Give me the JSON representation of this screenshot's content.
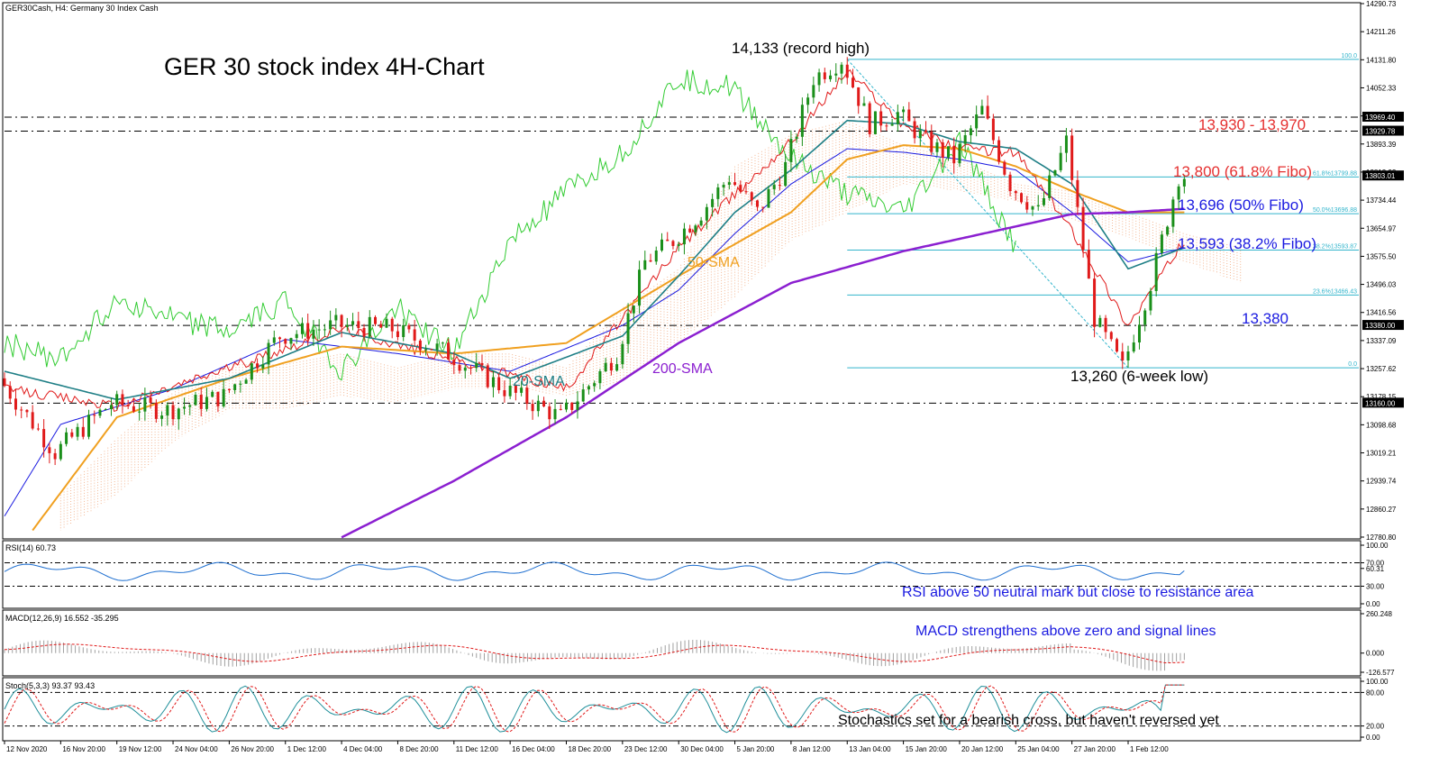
{
  "header": {
    "symbol_line": "GER30Cash, H4:  Germany 30 Index Cash",
    "title": "GER 30 stock index 4H-Chart"
  },
  "chart_data": {
    "type": "candlestick",
    "symbol": "GER30Cash",
    "timeframe": "H4",
    "price_axis": {
      "ticks": [
        "14290.73",
        "14211.26",
        "14131.80",
        "14052.33",
        "13972.86",
        "13893.39",
        "13813.93",
        "13734.44",
        "13654.97",
        "13575.50",
        "13496.03",
        "13416.56",
        "13337.09",
        "13257.62",
        "13178.15",
        "13098.68",
        "13019.21",
        "12939.74",
        "12860.27",
        "12780.80"
      ],
      "boxed": [
        "13969.40",
        "13929.78",
        "13803.01",
        "13380.00",
        "13160.00"
      ],
      "ylim": [
        12780.8,
        14290.73
      ]
    },
    "time_axis": [
      "12 Nov 2020",
      "16 Nov 20:00",
      "19 Nov 12:00",
      "24 Nov 04:00",
      "26 Nov 20:00",
      "1 Dec 12:00",
      "4 Dec 04:00",
      "8 Dec 20:00",
      "11 Dec 12:00",
      "16 Dec 04:00",
      "18 Dec 20:00",
      "23 Dec 12:00",
      "30 Dec 04:00",
      "5 Jan 20:00",
      "8 Jan 12:00",
      "13 Jan 04:00",
      "15 Jan 20:00",
      "20 Jan 12:00",
      "25 Jan 04:00",
      "27 Jan 20:00",
      "1 Feb 12:00"
    ],
    "price_path": [
      [
        0,
        13230
      ],
      [
        1,
        13020
      ],
      [
        2,
        13160
      ],
      [
        3,
        13140
      ],
      [
        4,
        13180
      ],
      [
        5,
        13350
      ],
      [
        6,
        13380
      ],
      [
        7,
        13370
      ],
      [
        8,
        13300
      ],
      [
        9,
        13200
      ],
      [
        10,
        13120
      ],
      [
        11,
        13300
      ],
      [
        11.5,
        13560
      ],
      [
        12,
        13620
      ],
      [
        12.5,
        13700
      ],
      [
        13,
        13800
      ],
      [
        13.5,
        13700
      ],
      [
        14,
        13830
      ],
      [
        14.5,
        14080
      ],
      [
        15,
        14133
      ],
      [
        15.5,
        13950
      ],
      [
        16,
        13980
      ],
      [
        16.5,
        13900
      ],
      [
        17,
        13850
      ],
      [
        17.5,
        13990
      ],
      [
        18,
        13780
      ],
      [
        18.5,
        13700
      ],
      [
        19,
        13900
      ],
      [
        19.5,
        13400
      ],
      [
        20,
        13260
      ],
      [
        20.5,
        13500
      ],
      [
        21,
        13803
      ]
    ],
    "sma20_path": [
      [
        0,
        13250
      ],
      [
        2,
        13170
      ],
      [
        4,
        13230
      ],
      [
        6,
        13360
      ],
      [
        8,
        13300
      ],
      [
        9,
        13230
      ],
      [
        11,
        13350
      ],
      [
        12,
        13520
      ],
      [
        13,
        13700
      ],
      [
        14,
        13820
      ],
      [
        15,
        13960
      ],
      [
        16,
        13950
      ],
      [
        17,
        13900
      ],
      [
        18,
        13880
      ],
      [
        19,
        13780
      ],
      [
        20,
        13540
      ],
      [
        21,
        13600
      ]
    ],
    "sma50_path": [
      [
        0.5,
        12800
      ],
      [
        2,
        13120
      ],
      [
        4,
        13230
      ],
      [
        6,
        13320
      ],
      [
        8,
        13300
      ],
      [
        10,
        13330
      ],
      [
        12,
        13520
      ],
      [
        14,
        13700
      ],
      [
        15,
        13850
      ],
      [
        16,
        13890
      ],
      [
        17,
        13880
      ],
      [
        18,
        13830
      ],
      [
        19,
        13760
      ],
      [
        20,
        13700
      ],
      [
        21,
        13700
      ]
    ],
    "sma200_path": [
      [
        6,
        12780
      ],
      [
        8,
        12940
      ],
      [
        10,
        13120
      ],
      [
        12,
        13330
      ],
      [
        14,
        13500
      ],
      [
        16,
        13590
      ],
      [
        18,
        13660
      ],
      [
        19,
        13695
      ],
      [
        20,
        13700
      ],
      [
        21,
        13710
      ]
    ],
    "kijun_path": [
      [
        0,
        12840
      ],
      [
        1,
        13100
      ],
      [
        3,
        13200
      ],
      [
        5,
        13340
      ],
      [
        7,
        13300
      ],
      [
        9,
        13250
      ],
      [
        11,
        13380
      ],
      [
        12,
        13480
      ],
      [
        13,
        13640
      ],
      [
        14,
        13780
      ],
      [
        15,
        13880
      ],
      [
        16,
        13870
      ],
      [
        17,
        13850
      ],
      [
        18,
        13820
      ],
      [
        19,
        13700
      ],
      [
        20,
        13560
      ],
      [
        21,
        13600
      ]
    ],
    "tenkan_path": [
      [
        0,
        13200
      ],
      [
        2,
        13150
      ],
      [
        4,
        13260
      ],
      [
        6,
        13370
      ],
      [
        8,
        13280
      ],
      [
        10,
        13200
      ],
      [
        12,
        13600
      ],
      [
        14,
        13900
      ],
      [
        15,
        14100
      ],
      [
        16,
        13950
      ],
      [
        17,
        13880
      ],
      [
        18,
        13870
      ],
      [
        19,
        13650
      ],
      [
        20,
        13380
      ],
      [
        21,
        13620
      ]
    ],
    "chikou_path": [
      [
        0,
        13330
      ],
      [
        1,
        13280
      ],
      [
        2,
        13460
      ],
      [
        3,
        13400
      ],
      [
        4,
        13360
      ],
      [
        5,
        13450
      ],
      [
        6,
        13250
      ],
      [
        7,
        13430
      ],
      [
        8,
        13300
      ],
      [
        9,
        13620
      ],
      [
        10,
        13760
      ],
      [
        11,
        13870
      ],
      [
        12,
        14080
      ],
      [
        13,
        14050
      ],
      [
        14,
        13850
      ],
      [
        15,
        13750
      ],
      [
        16,
        13700
      ],
      [
        17,
        13900
      ],
      [
        18,
        13600
      ]
    ],
    "cloud_upper": [
      [
        1,
        12900
      ],
      [
        2,
        13060
      ],
      [
        3,
        13190
      ],
      [
        4,
        13270
      ],
      [
        5,
        13270
      ],
      [
        6,
        13300
      ],
      [
        7,
        13260
      ],
      [
        8,
        13300
      ],
      [
        9,
        13300
      ],
      [
        10,
        13260
      ],
      [
        11,
        13430
      ],
      [
        12,
        13540
      ],
      [
        13,
        13830
      ],
      [
        14,
        13920
      ],
      [
        15,
        13960
      ],
      [
        16,
        13890
      ],
      [
        17,
        13850
      ],
      [
        18,
        13780
      ],
      [
        19,
        13760
      ],
      [
        20,
        13700
      ],
      [
        21,
        13640
      ],
      [
        22,
        13600
      ]
    ],
    "cloud_lower": [
      [
        1,
        12800
      ],
      [
        2,
        12900
      ],
      [
        3,
        13050
      ],
      [
        4,
        13140
      ],
      [
        5,
        13140
      ],
      [
        6,
        13180
      ],
      [
        7,
        13160
      ],
      [
        8,
        13200
      ],
      [
        9,
        13200
      ],
      [
        10,
        13180
      ],
      [
        11,
        13220
      ],
      [
        12,
        13330
      ],
      [
        13,
        13460
      ],
      [
        14,
        13620
      ],
      [
        15,
        13700
      ],
      [
        16,
        13780
      ],
      [
        17,
        13760
      ],
      [
        18,
        13730
      ],
      [
        19,
        13680
      ],
      [
        20,
        13630
      ],
      [
        21,
        13560
      ],
      [
        22,
        13500
      ]
    ],
    "fibonacci": {
      "levels": [
        {
          "label": "100.0",
          "price": 14133
        },
        {
          "label": "61.8%13799.88",
          "price": 13800
        },
        {
          "label": "50.0%13696.88",
          "price": 13696
        },
        {
          "label": "38.2%13593.87",
          "price": 13593
        },
        {
          "label": "23.6%13466.43",
          "price": 13466
        },
        {
          "label": "0.0",
          "price": 13260
        }
      ]
    },
    "horizontal_lines": [
      13969.4,
      13929.78,
      13380,
      13160
    ],
    "indicators": {
      "rsi": {
        "label": "RSI(14) 60.73",
        "ticks": [
          "100.00",
          "70.00",
          "60.31",
          "30.00",
          "0.00"
        ],
        "levels": [
          70,
          30
        ]
      },
      "macd": {
        "label": "MACD(12,26,9) 16.552 -35.295",
        "ticks": [
          "260.248",
          "0.000",
          "-126.577"
        ]
      },
      "stoch": {
        "label": "Stoch(5,3,3) 93.37 93.43",
        "ticks": [
          "100.00",
          "80.00",
          "20.00",
          "0.00"
        ]
      }
    }
  },
  "annotations": {
    "record_high": "14,133 (record high)",
    "six_week_low": "13,260 (6-week low)",
    "zone_13930_13970": "13,930 - 13,970",
    "fibo_618": "13,800 (61.8% Fibo)",
    "fibo_50": "13,696 (50% Fibo)",
    "fibo_382": "13,593 (38.2% Fibo)",
    "level_13380": "13,380",
    "sma20": "20-SMA",
    "sma50": "50-SMA",
    "sma200": "200-SMA",
    "rsi_note": "RSI above 50 neutral mark but close to resistance area",
    "macd_note": "MACD strengthens above zero and signal lines",
    "stoch_note": "Stochastics set for a bearish cross, but haven't reversed yet"
  },
  "colors": {
    "candle_up": "#1a8f1a",
    "candle_down": "#e01a1a",
    "sma20": "#1f7f86",
    "sma50": "#f0a020",
    "sma200": "#8b1fd0",
    "kijun": "#1a1ae0",
    "tenkan": "#e01a1a",
    "chikou": "#33cc33",
    "cloud": "#f0a070",
    "fibo": "#33b5cc",
    "ann_red": "#e53030",
    "ann_blue": "#1a1ae0",
    "ann_teal": "#1f7f86",
    "ann_purple": "#8b1fd0",
    "ann_orange": "#f0a020"
  }
}
